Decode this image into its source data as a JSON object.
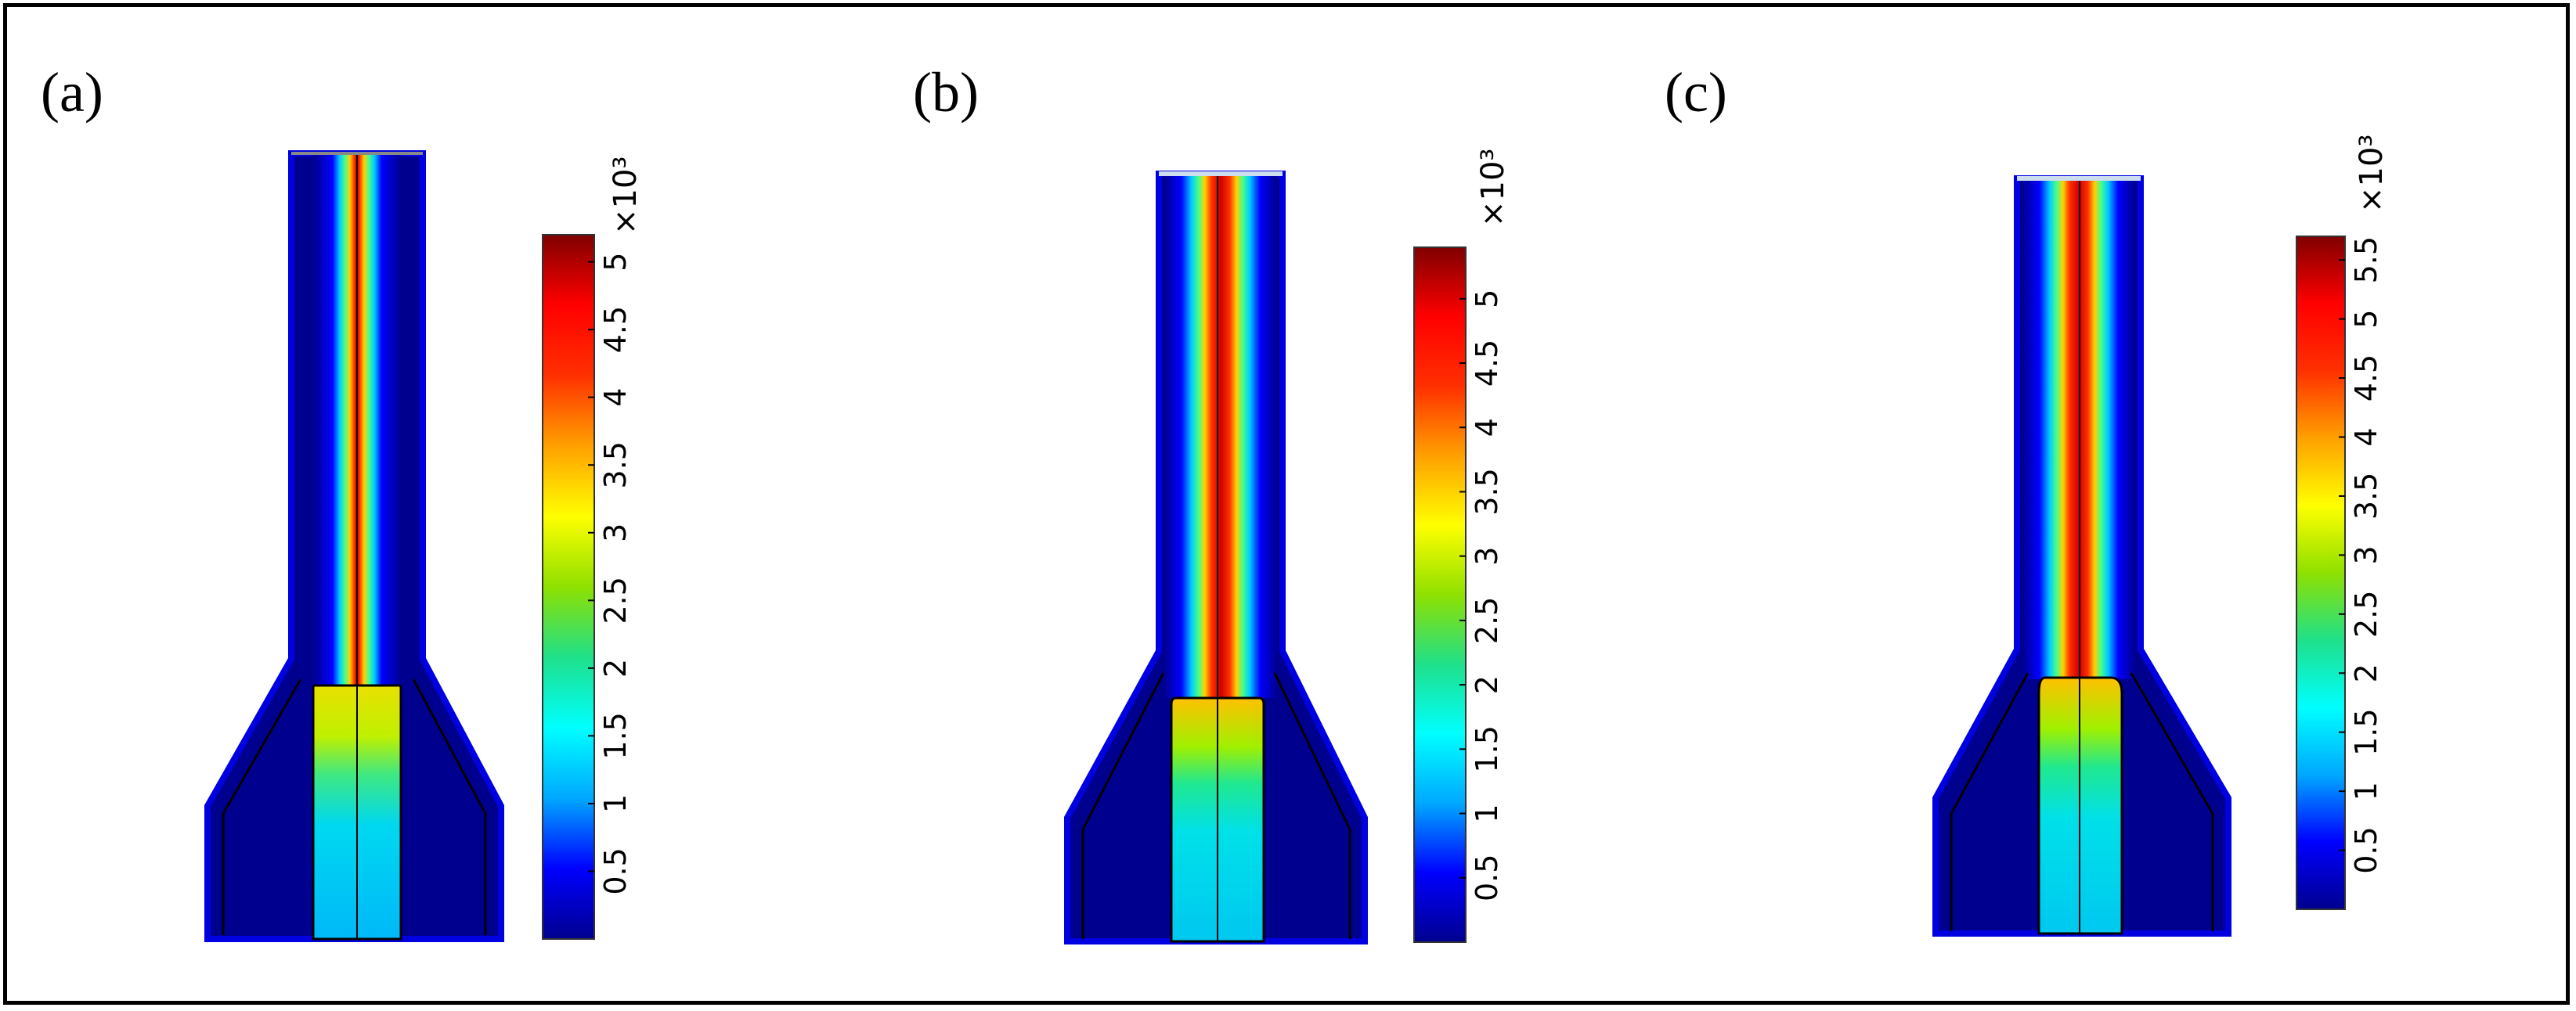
{
  "panels": [
    {
      "label": "(a)",
      "colorbar": {
        "multiplier": "×10³",
        "min": 0,
        "max": 5.2,
        "ticks": [
          "0.5",
          "1",
          "1.5",
          "2",
          "2.5",
          "3",
          "3.5",
          "4",
          "4.5",
          "5"
        ]
      }
    },
    {
      "label": "(b)",
      "colorbar": {
        "multiplier": "×10³",
        "min": 0,
        "max": 5.4,
        "ticks": [
          "0.5",
          "1",
          "1.5",
          "2",
          "2.5",
          "3",
          "3.5",
          "4",
          "4.5",
          "5"
        ]
      }
    },
    {
      "label": "(c)",
      "colorbar": {
        "multiplier": "×10³",
        "min": 0,
        "max": 5.7,
        "ticks": [
          "0.5",
          "1",
          "1.5",
          "2",
          "2.5",
          "3",
          "3.5",
          "4",
          "4.5",
          "5",
          "5.5"
        ]
      }
    }
  ],
  "colormap": [
    "#00008f",
    "#0000ff",
    "#00a8ff",
    "#00ffff",
    "#1fe08a",
    "#8fe000",
    "#ffff00",
    "#ffa000",
    "#ff3000",
    "#ff0000",
    "#800000"
  ],
  "colors": {
    "background": "#00008f",
    "tip_fill": "#00c8f0",
    "frame": "#000000"
  }
}
